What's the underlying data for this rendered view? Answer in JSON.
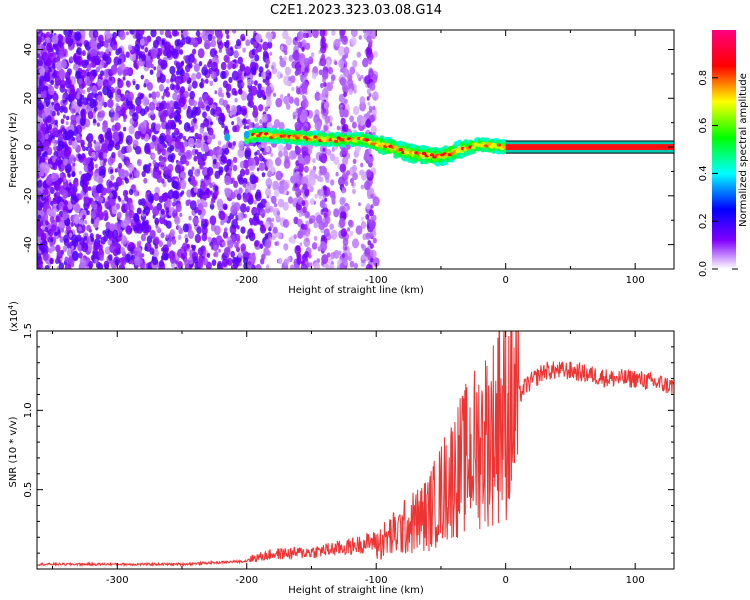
{
  "title": "C2E1.2023.323.03.08.G14",
  "chart_data": [
    {
      "type": "heatmap",
      "xlabel": "Height of straight line (km)",
      "ylabel": "Frequency (Hz)",
      "xlim": [
        -362,
        130
      ],
      "ylim": [
        -50,
        48
      ],
      "xticks": [
        -300,
        -200,
        -100,
        0,
        100
      ],
      "yticks": [
        -40,
        -20,
        0,
        20,
        40
      ],
      "colorbar": {
        "label": "Normalized spectral amplitude",
        "range": [
          0,
          1
        ],
        "ticks": [
          0.0,
          0.2,
          0.4,
          0.6,
          0.8
        ],
        "colors": [
          "#ffffff",
          "#8000ff",
          "#0000ff",
          "#00ffff",
          "#00ff00",
          "#ffff00",
          "#ff0000",
          "#ff0080"
        ]
      },
      "ridge": [
        {
          "x": -200,
          "y": 4
        },
        {
          "x": -190,
          "y": 5
        },
        {
          "x": -160,
          "y": 4
        },
        {
          "x": -130,
          "y": 3
        },
        {
          "x": -110,
          "y": 3
        },
        {
          "x": -90,
          "y": 0
        },
        {
          "x": -70,
          "y": -3
        },
        {
          "x": -50,
          "y": -4
        },
        {
          "x": -35,
          "y": -1
        },
        {
          "x": -20,
          "y": 1
        },
        {
          "x": 0,
          "y": 0
        },
        {
          "x": 130,
          "y": 0
        }
      ]
    },
    {
      "type": "line",
      "xlabel": "Height of straight line (km)",
      "ylabel": "SNR (10 * v/v)",
      "multiplier": "(x10",
      "multiplier_exp": "4",
      "multiplier_close": ")",
      "xlim": [
        -362,
        130
      ],
      "ylim": [
        0,
        1.5
      ],
      "xticks": [
        -300,
        -200,
        -100,
        0,
        100
      ],
      "yticks": [
        0.5,
        1.0,
        1.5
      ],
      "color": "#ee3333",
      "envelope": [
        {
          "x": -362,
          "y": 0.03
        },
        {
          "x": -250,
          "y": 0.03
        },
        {
          "x": -200,
          "y": 0.05
        },
        {
          "x": -180,
          "y": 0.08
        },
        {
          "x": -150,
          "y": 0.09
        },
        {
          "x": -120,
          "y": 0.12
        },
        {
          "x": -100,
          "y": 0.15
        },
        {
          "x": -80,
          "y": 0.25
        },
        {
          "x": -60,
          "y": 0.35
        },
        {
          "x": -40,
          "y": 0.6
        },
        {
          "x": -20,
          "y": 0.8
        },
        {
          "x": 0,
          "y": 0.95
        },
        {
          "x": 15,
          "y": 1.15
        },
        {
          "x": 30,
          "y": 1.25
        },
        {
          "x": 50,
          "y": 1.25
        },
        {
          "x": 80,
          "y": 1.2
        },
        {
          "x": 100,
          "y": 1.2
        },
        {
          "x": 130,
          "y": 1.15
        }
      ],
      "peak": {
        "x": -5,
        "y": 1.5
      }
    }
  ]
}
